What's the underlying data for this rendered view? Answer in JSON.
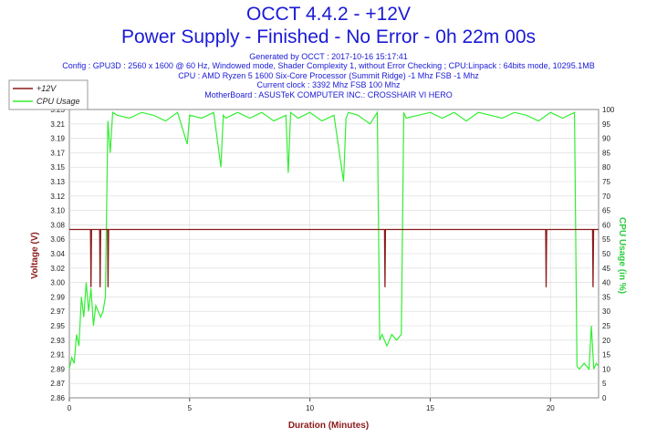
{
  "header": {
    "title": "OCCT 4.4.2 - +12V",
    "subtitle": "Power Supply - Finished - No Error - 0h 22m 00s",
    "info": [
      "Generated by OCCT : 2017-10-16 15:17:41",
      "Config : GPU3D : 2560 x 1600 @ 60 Hz, Windowed mode, Shader Complexity 1, without Error Checking ; CPU:Linpack : 64bits mode, 10295.1MB",
      "CPU : AMD Ryzen 5 1600 Six-Core Processor (Summit Ridge) -1 Mhz FSB -1 Mhz",
      "Current clock : 3392 Mhz FSB 100 Mhz",
      "MotherBoard : ASUSTeK COMPUTER INC.: CROSSHAIR VI HERO"
    ]
  },
  "colors": {
    "voltage": "#8b1a1a",
    "cpu": "#33ee33",
    "text": "#1a1ad6",
    "grid": "#d8d8d8",
    "plot_bg": "#ffffff"
  },
  "chart_data": {
    "type": "line",
    "xlabel": "Duration (Minutes)",
    "ylabel": "Voltage (V)",
    "ylabel_right": "CPU Usage (in %)",
    "xlim": [
      0,
      22
    ],
    "x_ticks": [
      0,
      5,
      10,
      15,
      20
    ],
    "ylim": [
      2.86,
      3.23
    ],
    "y_ticks": [
      "2.86",
      "2.87",
      "2.89",
      "2.91",
      "2.93",
      "2.95",
      "2.97",
      "2.99",
      "3.00",
      "3.02",
      "3.04",
      "3.06",
      "3.08",
      "3.10",
      "3.12",
      "3.13",
      "3.15",
      "3.17",
      "3.19",
      "3.21",
      "3.23"
    ],
    "ylim_right": [
      0,
      100
    ],
    "y_ticks_right": [
      0,
      5,
      10,
      15,
      20,
      25,
      30,
      35,
      40,
      45,
      50,
      55,
      60,
      65,
      70,
      75,
      80,
      85,
      90,
      95,
      100
    ],
    "legend_position": "top-left",
    "series": [
      {
        "name": "+12V",
        "axis": "left",
        "x": [
          0,
          0.88,
          0.9,
          0.92,
          1.26,
          1.28,
          1.3,
          1.59,
          1.61,
          1.63,
          13.1,
          13.12,
          13.14,
          19.8,
          19.82,
          19.84,
          21.75,
          21.77,
          21.79,
          22
        ],
        "values": [
          3.076,
          3.076,
          3.002,
          3.076,
          3.076,
          3.002,
          3.076,
          3.076,
          3.002,
          3.076,
          3.076,
          3.002,
          3.076,
          3.076,
          3.002,
          3.076,
          3.076,
          3.002,
          3.076,
          3.076
        ]
      },
      {
        "name": "CPU Usage",
        "axis": "right",
        "x": [
          0,
          0.1,
          0.2,
          0.3,
          0.4,
          0.5,
          0.6,
          0.7,
          0.8,
          0.9,
          1.0,
          1.1,
          1.2,
          1.3,
          1.4,
          1.5,
          1.6,
          1.7,
          1.8,
          2.0,
          2.5,
          3.0,
          3.5,
          4.0,
          4.5,
          4.9,
          5.0,
          5.5,
          6.0,
          6.3,
          6.4,
          6.5,
          7.0,
          7.5,
          8.0,
          8.5,
          9.0,
          9.1,
          9.2,
          9.5,
          10.0,
          10.5,
          11.0,
          11.4,
          11.5,
          11.6,
          12.0,
          12.5,
          12.8,
          12.9,
          13.0,
          13.1,
          13.2,
          13.4,
          13.6,
          13.8,
          13.9,
          14.0,
          14.5,
          15.0,
          15.5,
          16.0,
          16.5,
          17.0,
          17.5,
          18.0,
          18.5,
          19.0,
          19.5,
          20.0,
          20.5,
          21.0,
          21.1,
          21.2,
          21.4,
          21.6,
          21.7,
          21.8,
          21.9,
          22.0
        ],
        "values": [
          10,
          14,
          12,
          22,
          18,
          35,
          28,
          40,
          30,
          38,
          25,
          32,
          30,
          28,
          30,
          35,
          96,
          85,
          99,
          98,
          97,
          99,
          98,
          96,
          99,
          88,
          98,
          97,
          99,
          80,
          98,
          97,
          99,
          97,
          99,
          96,
          98,
          78,
          99,
          97,
          99,
          96,
          98,
          75,
          97,
          99,
          98,
          95,
          99,
          20,
          22,
          20,
          18,
          22,
          20,
          22,
          99,
          97,
          98,
          99,
          97,
          99,
          96,
          99,
          98,
          97,
          99,
          98,
          96,
          99,
          97,
          99,
          11,
          10,
          12,
          10,
          25,
          10,
          12,
          11
        ]
      }
    ]
  }
}
